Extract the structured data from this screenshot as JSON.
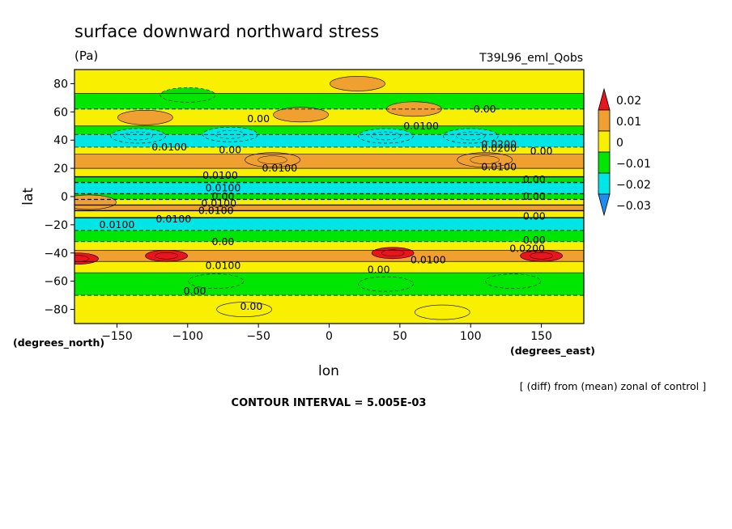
{
  "chart_data": {
    "type": "heatmap",
    "title": "surface downward northward stress",
    "units": "(Pa)",
    "run_label": "T39L96_eml_Qobs",
    "xlabel": "lon",
    "ylabel": "lat",
    "x_units_label": "(degrees_east)",
    "y_units_label": "(degrees_north)",
    "xlim": [
      -180,
      180
    ],
    "ylim": [
      -90,
      90
    ],
    "x_ticks": [
      -150,
      -100,
      -50,
      0,
      50,
      100,
      150
    ],
    "y_ticks": [
      80,
      60,
      40,
      20,
      0,
      -20,
      -40,
      -60,
      -80
    ],
    "x_tick_labels": [
      "−150",
      "−100",
      "−50",
      "0",
      "50",
      "100",
      "150"
    ],
    "y_tick_labels": [
      "80",
      "60",
      "40",
      "20",
      "0",
      "−20",
      "−40",
      "−60",
      "−80"
    ],
    "note": "[ (diff) from (mean) zonal of control ]",
    "contour_interval_text": "CONTOUR INTERVAL = 5.005E-03",
    "contour_interval": 0.005005,
    "colorbar": {
      "levels": [
        0.02,
        0.01,
        0,
        -0.01,
        -0.02,
        -0.03
      ],
      "labels": [
        "0.02",
        "0.01",
        "0",
        "−0.01",
        "−0.02",
        "−0.03"
      ],
      "colors": [
        "#e8141e",
        "#f0a030",
        "#f8f000",
        "#00e600",
        "#00e6e6",
        "#1e8cf0"
      ]
    },
    "lat_band_values": [
      {
        "lat": [
          73,
          90
        ],
        "value": 0.005
      },
      {
        "lat": [
          62,
          73
        ],
        "value": -0.003
      },
      {
        "lat": [
          50,
          62
        ],
        "value": 0.004
      },
      {
        "lat": [
          44,
          50
        ],
        "value": -0.008
      },
      {
        "lat": [
          35,
          44
        ],
        "value": -0.012
      },
      {
        "lat": [
          30,
          35
        ],
        "value": 0.004
      },
      {
        "lat": [
          20,
          30
        ],
        "value": 0.011
      },
      {
        "lat": [
          14,
          20
        ],
        "value": 0.005
      },
      {
        "lat": [
          10,
          14
        ],
        "value": -0.005
      },
      {
        "lat": [
          2,
          10
        ],
        "value": -0.015
      },
      {
        "lat": [
          -2,
          2
        ],
        "value": -0.005
      },
      {
        "lat": [
          -6,
          -2
        ],
        "value": 0.005
      },
      {
        "lat": [
          -10,
          -6
        ],
        "value": 0.011
      },
      {
        "lat": [
          -15,
          -10
        ],
        "value": 0.004
      },
      {
        "lat": [
          -24,
          -15
        ],
        "value": -0.012
      },
      {
        "lat": [
          -32,
          -24
        ],
        "value": -0.003
      },
      {
        "lat": [
          -38,
          -32
        ],
        "value": 0.005
      },
      {
        "lat": [
          -46,
          -38
        ],
        "value": 0.012
      },
      {
        "lat": [
          -54,
          -46
        ],
        "value": 0.004
      },
      {
        "lat": [
          -70,
          -54
        ],
        "value": -0.004
      },
      {
        "lat": [
          -90,
          -70
        ],
        "value": 0.003
      }
    ],
    "features": [
      {
        "lon": -135,
        "lat": 43,
        "value": -0.015
      },
      {
        "lon": -70,
        "lat": 44,
        "value": -0.015
      },
      {
        "lon": 40,
        "lat": 43,
        "value": -0.015
      },
      {
        "lon": 100,
        "lat": 43,
        "value": -0.017
      },
      {
        "lon": -130,
        "lat": 56,
        "value": 0.011
      },
      {
        "lon": -20,
        "lat": 58,
        "value": 0.012
      },
      {
        "lon": 60,
        "lat": 62,
        "value": 0.013
      },
      {
        "lon": -40,
        "lat": 26,
        "value": 0.015
      },
      {
        "lon": 110,
        "lat": 26,
        "value": 0.015
      },
      {
        "lon": -170,
        "lat": -4,
        "value": 0.013
      },
      {
        "lon": -115,
        "lat": -42,
        "value": 0.022
      },
      {
        "lon": 45,
        "lat": -40,
        "value": 0.021
      },
      {
        "lon": 150,
        "lat": -42,
        "value": 0.022
      },
      {
        "lon": -178,
        "lat": -44,
        "value": 0.021
      },
      {
        "lon": -100,
        "lat": 72,
        "value": -0.008
      },
      {
        "lon": 20,
        "lat": 80,
        "value": 0.011
      },
      {
        "lon": -80,
        "lat": -60,
        "value": -0.007
      },
      {
        "lon": 40,
        "lat": -62,
        "value": -0.008
      },
      {
        "lon": 130,
        "lat": -60,
        "value": -0.007
      },
      {
        "lon": -60,
        "lat": -80,
        "value": 0.009
      },
      {
        "lon": 80,
        "lat": -82,
        "value": 0.008
      }
    ],
    "contour_labels": [
      {
        "text": "0.00",
        "lon": -50,
        "lat": 55
      },
      {
        "text": "0.00",
        "lon": 110,
        "lat": 62
      },
      {
        "text": "0.0100",
        "lon": 65,
        "lat": 50
      },
      {
        "text": "0.0100",
        "lon": -113,
        "lat": 35
      },
      {
        "text": "0.00",
        "lon": -70,
        "lat": 33
      },
      {
        "text": "0.0200",
        "lon": 120,
        "lat": 37
      },
      {
        "text": "0.0200",
        "lon": 120,
        "lat": 34
      },
      {
        "text": "0.00",
        "lon": 150,
        "lat": 32
      },
      {
        "text": "0.0100",
        "lon": -35,
        "lat": 20
      },
      {
        "text": "0.0100",
        "lon": 120,
        "lat": 21
      },
      {
        "text": "0.0100",
        "lon": -77,
        "lat": 15
      },
      {
        "text": "0.00",
        "lon": 145,
        "lat": 12
      },
      {
        "text": "0.0100",
        "lon": -75,
        "lat": 6
      },
      {
        "text": "0.00",
        "lon": -75,
        "lat": 0
      },
      {
        "text": "0.00",
        "lon": 145,
        "lat": 0
      },
      {
        "text": "0.0100",
        "lon": -78,
        "lat": -5
      },
      {
        "text": "0.0100",
        "lon": -80,
        "lat": -10
      },
      {
        "text": "0.0100",
        "lon": -110,
        "lat": -16
      },
      {
        "text": "0.0100",
        "lon": -150,
        "lat": -20
      },
      {
        "text": "0.00",
        "lon": 145,
        "lat": -14
      },
      {
        "text": "0.00",
        "lon": -75,
        "lat": -32
      },
      {
        "text": "0.00",
        "lon": 145,
        "lat": -31
      },
      {
        "text": "0.0200",
        "lon": 140,
        "lat": -37
      },
      {
        "text": "0.0100",
        "lon": -75,
        "lat": -49
      },
      {
        "text": "0.0100",
        "lon": 70,
        "lat": -45
      },
      {
        "text": "0.00",
        "lon": 35,
        "lat": -52
      },
      {
        "text": "0.00",
        "lon": -95,
        "lat": -67
      },
      {
        "text": "0.00",
        "lon": -55,
        "lat": -78
      }
    ]
  }
}
